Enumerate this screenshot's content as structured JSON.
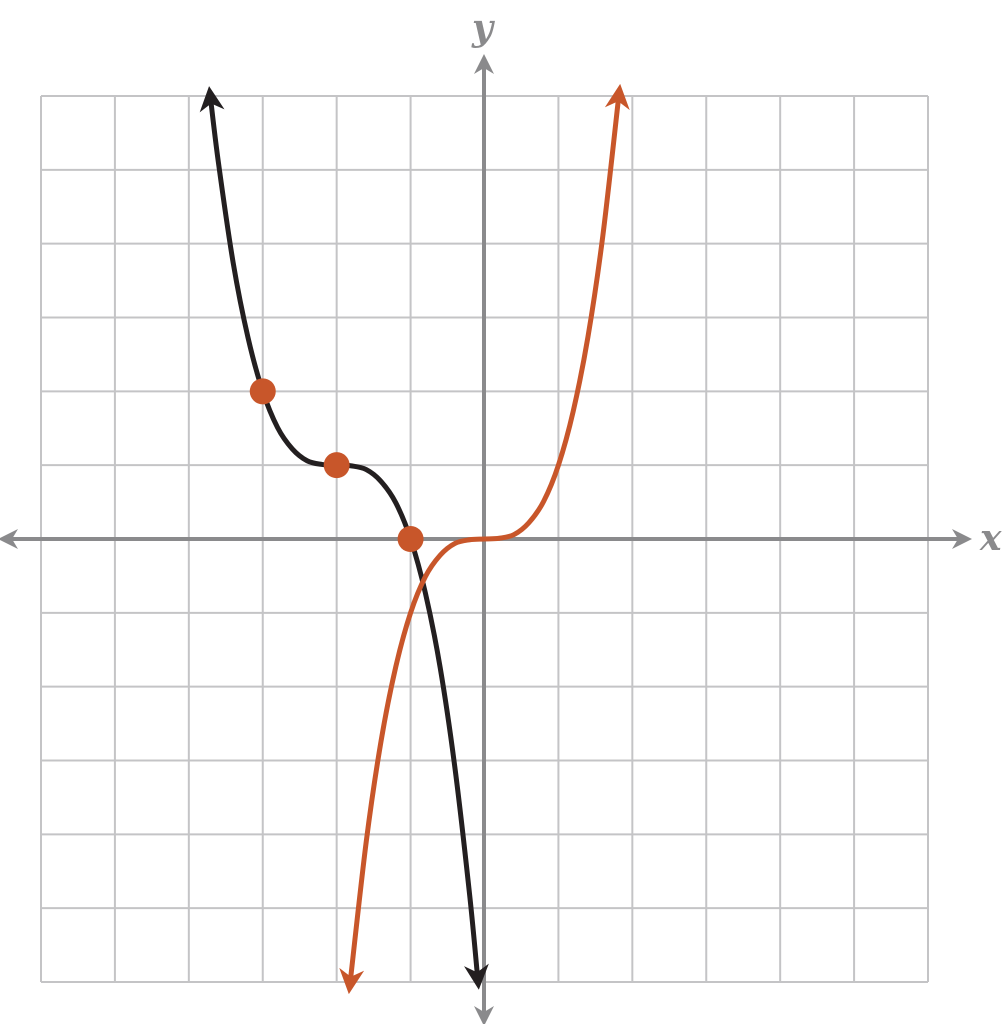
{
  "chart_data": {
    "type": "line",
    "xlabel": "x",
    "ylabel": "y",
    "xlim": [
      -6,
      6
    ],
    "ylim": [
      -6,
      6
    ],
    "xticks": [
      -6,
      -5,
      -4,
      -3,
      -2,
      -1,
      0,
      1,
      2,
      3,
      4,
      5,
      6
    ],
    "yticks": [
      -6,
      -5,
      -4,
      -3,
      -2,
      -1,
      0,
      1,
      2,
      3,
      4,
      5,
      6
    ],
    "grid": true,
    "series": [
      {
        "type": "line",
        "color": "#231f20",
        "x": [
          -3.71,
          -3.6,
          -3.4,
          -3.2,
          -3.0,
          -2.8,
          -2.6,
          -2.4,
          -2.2,
          -2.0,
          -1.8,
          -1.6,
          -1.4,
          -1.2,
          -1.0,
          -0.8,
          -0.6,
          -0.4,
          -0.2,
          -0.09
        ],
        "values": [
          6.0,
          5.1,
          3.74,
          2.73,
          2,
          1.51,
          1.22,
          1.06,
          1.01,
          1,
          0.99,
          0.94,
          0.78,
          0.49,
          0,
          -0.73,
          -1.74,
          -3.1,
          -4.83,
          -5.97
        ]
      },
      {
        "type": "line",
        "color": "#c8562a",
        "x": [
          -1.82,
          -1.6,
          -1.4,
          -1.2,
          -1.0,
          -0.8,
          -0.6,
          -0.4,
          -0.2,
          0,
          0.2,
          0.4,
          0.6,
          0.8,
          1.0,
          1.2,
          1.4,
          1.6,
          1.82
        ],
        "values": [
          -6.03,
          -4.1,
          -2.74,
          -1.73,
          -1,
          -0.51,
          -0.22,
          -0.06,
          -0.01,
          0,
          0.01,
          0.06,
          0.22,
          0.51,
          1,
          1.73,
          2.74,
          4.1,
          6.03
        ]
      },
      {
        "type": "scatter",
        "color": "#c8562a",
        "x": [
          -3,
          -2,
          -1
        ],
        "values": [
          2,
          1,
          0
        ]
      }
    ]
  }
}
